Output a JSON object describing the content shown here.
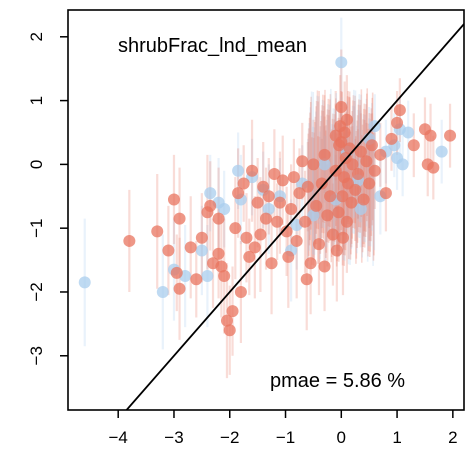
{
  "chart_data": {
    "type": "scatter",
    "title": "shrubFrac_lnd_mean",
    "annotation": "pmae = 5.86 %",
    "xlim": [
      -4.9,
      2.2
    ],
    "ylim": [
      -3.85,
      2.42
    ],
    "x_ticks": [
      -4,
      -3,
      -2,
      -1,
      0,
      1,
      2
    ],
    "y_ticks": [
      -3,
      -2,
      -1,
      0,
      1,
      2
    ],
    "x_tick_labels": [
      "−4",
      "−3",
      "−2",
      "−1",
      "0",
      "1",
      "2"
    ],
    "y_tick_labels": [
      "−3",
      "−2",
      "−1",
      "0",
      "1",
      "2"
    ],
    "reference_line": {
      "type": "identity",
      "slope": 1,
      "intercept": 0
    },
    "grid": false,
    "colors": {
      "series_a": "#e8745f",
      "series_b": "#a9cdee",
      "line": "#000000"
    },
    "series": [
      {
        "color": "#e8745f",
        "points": [
          [
            -3.8,
            -1.2,
            0.8
          ],
          [
            -3.3,
            -1.05,
            0.9
          ],
          [
            -3.0,
            -0.55,
            0.7
          ],
          [
            -2.9,
            -0.85,
            0.8
          ],
          [
            -2.95,
            -1.7,
            0.6
          ],
          [
            -2.9,
            -1.95,
            0.8
          ],
          [
            -2.7,
            -1.3,
            0.8
          ],
          [
            -2.6,
            -1.8,
            0.6
          ],
          [
            -2.4,
            -0.75,
            0.9
          ],
          [
            -2.3,
            -1.55,
            0.7
          ],
          [
            -2.2,
            -0.85,
            0.8
          ],
          [
            -2.2,
            -1.4,
            0.7
          ],
          [
            -2.15,
            -1.6,
            0.8
          ],
          [
            -2.1,
            -1.75,
            0.9
          ],
          [
            -2.0,
            -2.6,
            0.7
          ],
          [
            -2.05,
            -2.45,
            0.9
          ],
          [
            -1.95,
            -2.3,
            0.7
          ],
          [
            -1.9,
            -1.0,
            0.8
          ],
          [
            -1.85,
            -0.45,
            0.7
          ],
          [
            -1.8,
            -2.0,
            0.8
          ],
          [
            -1.7,
            -1.15,
            0.7
          ],
          [
            -1.65,
            -1.45,
            0.6
          ],
          [
            -1.6,
            -0.1,
            0.8
          ],
          [
            -1.5,
            -0.6,
            0.7
          ],
          [
            -1.45,
            -1.1,
            0.9
          ],
          [
            -1.4,
            -0.35,
            0.7
          ],
          [
            -1.35,
            -0.85,
            0.8
          ],
          [
            -1.3,
            -0.5,
            0.6
          ],
          [
            -1.25,
            -1.55,
            0.8
          ],
          [
            -1.2,
            -0.15,
            0.7
          ],
          [
            -1.15,
            -0.9,
            0.6
          ],
          [
            -1.1,
            -0.6,
            0.8
          ],
          [
            -1.05,
            -0.25,
            0.7
          ],
          [
            -0.95,
            -1.45,
            0.8
          ],
          [
            -0.9,
            -0.7,
            0.7
          ],
          [
            -0.85,
            -0.2,
            0.6
          ],
          [
            -0.8,
            -1.2,
            0.9
          ],
          [
            -0.75,
            -0.45,
            0.7
          ],
          [
            -0.7,
            0.05,
            0.6
          ],
          [
            -0.65,
            -0.9,
            0.8
          ],
          [
            -0.6,
            -0.35,
            0.7
          ],
          [
            -0.55,
            -1.55,
            0.8
          ],
          [
            -0.5,
            0.0,
            0.7
          ],
          [
            -0.45,
            -0.65,
            0.6
          ],
          [
            -0.4,
            -1.25,
            0.8
          ],
          [
            -0.35,
            -0.3,
            0.7
          ],
          [
            -0.3,
            0.15,
            0.6
          ],
          [
            -0.25,
            -0.8,
            0.8
          ],
          [
            -0.2,
            -0.5,
            0.7
          ],
          [
            -0.15,
            -1.1,
            0.8
          ],
          [
            -0.1,
            -0.1,
            0.6
          ],
          [
            -0.05,
            -0.75,
            0.7
          ],
          [
            0.0,
            0.35,
            0.8
          ],
          [
            0.02,
            -0.5,
            0.8
          ],
          [
            0.05,
            -0.2,
            0.9
          ],
          [
            0.08,
            0.1,
            0.7
          ],
          [
            0.1,
            -0.9,
            0.8
          ],
          [
            0.12,
            -0.3,
            0.6
          ],
          [
            0.15,
            0.25,
            0.8
          ],
          [
            0.18,
            -0.6,
            0.7
          ],
          [
            0.2,
            0.0,
            0.6
          ],
          [
            0.25,
            -0.4,
            0.8
          ],
          [
            0.3,
            -0.15,
            0.7
          ],
          [
            0.35,
            0.2,
            0.6
          ],
          [
            0.4,
            -0.55,
            0.7
          ],
          [
            0.45,
            0.05,
            0.6
          ],
          [
            0.5,
            -0.3,
            0.7
          ],
          [
            0.55,
            0.3,
            0.5
          ],
          [
            0.6,
            -0.1,
            0.6
          ],
          [
            0.7,
            0.15,
            0.5
          ],
          [
            0.8,
            -0.45,
            0.6
          ],
          [
            0.9,
            0.4,
            0.5
          ],
          [
            1.0,
            0.65,
            0.5
          ],
          [
            1.05,
            0.85,
            0.5
          ],
          [
            1.3,
            0.3,
            0.5
          ],
          [
            1.5,
            0.55,
            0.5
          ],
          [
            1.6,
            0.45,
            0.5
          ],
          [
            1.55,
            0.0,
            0.5
          ],
          [
            1.65,
            -0.05,
            0.5
          ],
          [
            1.95,
            0.45,
            0.5
          ],
          [
            -2.35,
            -0.65,
            0.7
          ],
          [
            -1.55,
            -1.3,
            0.8
          ],
          [
            -0.98,
            -1.05,
            0.7
          ],
          [
            -0.62,
            -1.8,
            0.8
          ],
          [
            -0.3,
            -1.6,
            0.7
          ],
          [
            -0.08,
            -1.35,
            0.8
          ],
          [
            0.03,
            -1.15,
            0.9
          ],
          [
            -1.75,
            -0.3,
            0.6
          ],
          [
            -2.5,
            -1.15,
            0.7
          ],
          [
            -3.1,
            -1.35,
            0.7
          ],
          [
            -0.02,
            0.6,
            0.8
          ],
          [
            0.0,
            0.9,
            0.9
          ],
          [
            0.06,
            0.5,
            0.8
          ],
          [
            -0.04,
            0.3,
            0.7
          ],
          [
            -0.1,
            0.45,
            0.7
          ],
          [
            0.1,
            0.7,
            0.7
          ]
        ]
      },
      {
        "color": "#a9cdee",
        "points": [
          [
            -4.6,
            -1.85,
            1.0
          ],
          [
            -3.2,
            -2.0,
            0.9
          ],
          [
            -3.0,
            -1.65,
            0.8
          ],
          [
            -2.8,
            -1.75,
            0.8
          ],
          [
            -2.5,
            -1.35,
            0.7
          ],
          [
            -2.4,
            -1.75,
            0.8
          ],
          [
            -2.35,
            -0.45,
            0.6
          ],
          [
            -2.2,
            -0.6,
            0.7
          ],
          [
            -2.1,
            -0.7,
            0.6
          ],
          [
            -1.8,
            -0.55,
            0.7
          ],
          [
            -1.6,
            -0.2,
            0.6
          ],
          [
            -1.4,
            -0.4,
            0.6
          ],
          [
            -1.3,
            -0.7,
            0.7
          ],
          [
            -1.1,
            -0.5,
            0.6
          ],
          [
            -0.9,
            -1.35,
            0.8
          ],
          [
            -0.7,
            -0.3,
            0.6
          ],
          [
            -0.5,
            -0.8,
            0.7
          ],
          [
            -0.3,
            0.0,
            0.6
          ],
          [
            -0.1,
            -0.55,
            0.7
          ],
          [
            0.1,
            0.2,
            0.6
          ],
          [
            0.3,
            -0.25,
            0.6
          ],
          [
            0.5,
            0.4,
            0.5
          ],
          [
            0.7,
            -0.5,
            0.6
          ],
          [
            0.8,
            0.2,
            0.5
          ],
          [
            0.95,
            0.3,
            0.5
          ],
          [
            1.0,
            0.1,
            0.5
          ],
          [
            1.05,
            0.55,
            0.5
          ],
          [
            1.1,
            0.0,
            0.5
          ],
          [
            1.2,
            0.5,
            0.5
          ],
          [
            1.8,
            0.2,
            0.5
          ],
          [
            0.0,
            1.6,
            0.7
          ],
          [
            -1.85,
            -0.1,
            0.6
          ],
          [
            -0.8,
            -0.95,
            0.7
          ],
          [
            0.35,
            -0.7,
            0.6
          ],
          [
            0.6,
            0.6,
            0.5
          ]
        ]
      }
    ]
  }
}
